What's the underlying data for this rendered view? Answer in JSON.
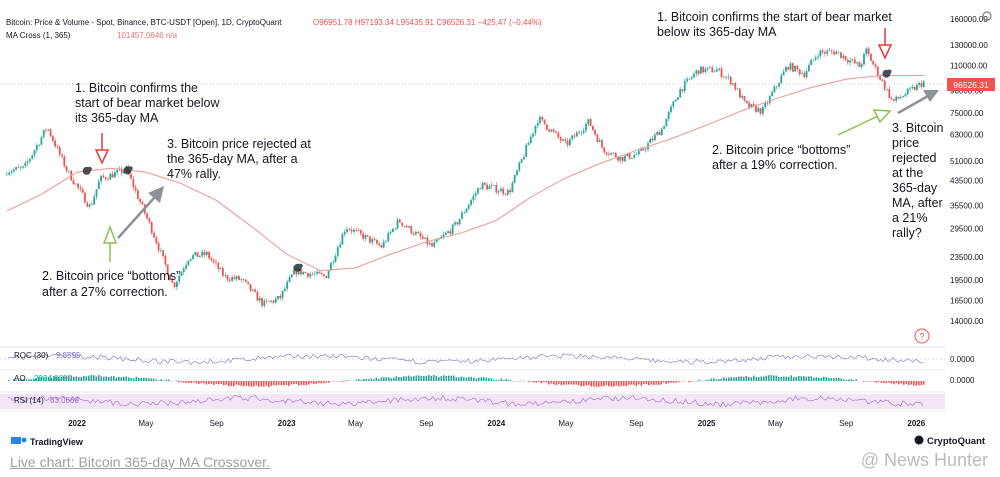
{
  "header": {
    "symbol_line": "Bitcoin: Price & Volume - Spot, Binance, BTC-USDT [Open], 1D, CryptoQuant",
    "ohlc": "O96951.78 H97193.34 L95435.91 C96526.31 −425.47 (−0.44%)",
    "ma_label": "MA Cross (1, 365)",
    "ma_value": "101457.0646 n/a"
  },
  "price_tag": "96526.31",
  "pane_labels": {
    "roc": "ROC (30)",
    "roc_value": "9.8595",
    "ao": "AO",
    "ao_value": "2964.8080",
    "rsi": "RSI (14)",
    "rsi_value": "63.0669"
  },
  "pane_axis": {
    "roc": "0.0000",
    "ao": "0.0000"
  },
  "annotations": {
    "left_1": [
      "1. Bitcoin confirms the",
      "start of bear market below",
      "its 365-day MA"
    ],
    "left_2": [
      "2. Bitcoin price “bottoms”",
      "after a 27% correction."
    ],
    "left_3": [
      "3. Bitcoin price rejected at",
      "the 365-day MA, after a",
      "47% rally."
    ],
    "right_1": [
      "1. Bitcoin confirms the start of bear market",
      "below its 365-day MA"
    ],
    "right_2": [
      "2. Bitcoin price “bottoms”",
      "after a 19% correction."
    ],
    "right_3": [
      "3. Bitcoin",
      "price",
      "rejected",
      "at the",
      "365-day",
      "MA, after",
      "a 21%",
      "rally?"
    ]
  },
  "branding": {
    "tradingview": "TradingView",
    "cryptoquant": "CryptoQuant",
    "info_mark": "?"
  },
  "caption": "Live chart: Bitcoin 365-day MA Crossover.",
  "watermark": "@ News Hunter",
  "colors": {
    "price_up": "#26a69a",
    "price_down": "#ef5350",
    "ma": "#e8a09a",
    "arrow_red": "#e53935",
    "arrow_green": "#8bc34a",
    "arrow_gray": "#8d9299",
    "roc": "#7e6fc9",
    "rsi": "#9c6ad1",
    "rsi_band": "#f3e5f5"
  },
  "chart_data": {
    "type": "line",
    "x_ticks": [
      "2022",
      "May",
      "Sep",
      "2023",
      "May",
      "Sep",
      "2024",
      "May",
      "Sep",
      "2025",
      "May",
      "Sep",
      "2026"
    ],
    "y_scale": "log",
    "y_ticks": [
      14000,
      16500,
      19500,
      23500,
      29500,
      35500,
      43500,
      51000,
      63000,
      75000,
      90000,
      110000,
      130000,
      160000
    ],
    "y_tick_labels": [
      "14000.00",
      "16500.00",
      "19500.00",
      "23500.00",
      "29500.00",
      "35500.00",
      "43500.00",
      "51000.00",
      "63000.00",
      "75000.00",
      "90000.00",
      "110000.00",
      "130000.00",
      "160000.00"
    ],
    "ylim": [
      12500,
      175000
    ],
    "series": [
      {
        "name": "",
        "role": "price",
        "x": [
          "2021-09-01",
          "2021-10-01",
          "2021-11-10",
          "2021-12-15",
          "2022-01-24",
          "2022-02-10",
          "2022-03-28",
          "2022-05-12",
          "2022-06-18",
          "2022-07-15",
          "2022-08-15",
          "2022-09-15",
          "2022-10-15",
          "2022-11-21",
          "2022-12-20",
          "2023-01-15",
          "2023-03-10",
          "2023-04-14",
          "2023-06-15",
          "2023-07-15",
          "2023-09-11",
          "2023-10-20",
          "2023-12-05",
          "2024-01-23",
          "2024-03-14",
          "2024-05-01",
          "2024-06-10",
          "2024-07-05",
          "2024-08-05",
          "2024-09-06",
          "2024-10-15",
          "2024-11-15",
          "2024-12-17",
          "2025-01-20",
          "2025-02-15",
          "2025-03-10",
          "2025-04-08",
          "2025-05-22",
          "2025-06-20",
          "2025-07-14",
          "2025-08-14",
          "2025-09-25",
          "2025-10-06",
          "2025-10-20",
          "2025-11-21",
          "2025-12-15",
          "2026-01-15"
        ],
        "y": [
          47000,
          48000,
          67000,
          47000,
          35000,
          44000,
          47500,
          29000,
          18500,
          23500,
          24000,
          20000,
          19500,
          16000,
          16800,
          21000,
          20000,
          30000,
          25500,
          31500,
          25500,
          30000,
          42000,
          39500,
          72000,
          58000,
          70000,
          56000,
          52000,
          54000,
          66000,
          90000,
          106000,
          106000,
          96000,
          80000,
          76000,
          110000,
          103000,
          122000,
          123000,
          109000,
          124000,
          109000,
          82000,
          88000,
          96500
        ]
      },
      {
        "name": "",
        "role": "ma_365",
        "x": [
          "2021-09-01",
          "2021-11-01",
          "2022-01-01",
          "2022-03-01",
          "2022-05-01",
          "2022-07-01",
          "2022-09-01",
          "2022-11-01",
          "2023-01-01",
          "2023-03-01",
          "2023-05-01",
          "2023-07-01",
          "2023-09-01",
          "2023-11-01",
          "2024-01-01",
          "2024-03-01",
          "2024-05-01",
          "2024-07-01",
          "2024-09-01",
          "2024-11-01",
          "2025-01-01",
          "2025-03-01",
          "2025-05-01",
          "2025-07-01",
          "2025-09-01",
          "2025-11-01",
          "2026-01-15"
        ],
        "y": [
          34000,
          39000,
          46500,
          48000,
          46500,
          42500,
          37000,
          30000,
          24000,
          21000,
          21500,
          24000,
          26500,
          28500,
          31500,
          38000,
          44500,
          50000,
          55500,
          61000,
          68000,
          76000,
          84000,
          92000,
          98500,
          101500,
          101457
        ]
      }
    ],
    "events": [
      {
        "label": "bear confirmation",
        "x": "2022-01-18",
        "y": 47000
      },
      {
        "label": "MA rejection",
        "x": "2022-03-30",
        "y": 47200
      },
      {
        "label": "MA reclaim",
        "x": "2023-01-20",
        "y": 21500
      },
      {
        "label": "bear confirmation",
        "x": "2025-11-10",
        "y": 103000
      }
    ],
    "panes": [
      {
        "name": "ROC (30)",
        "last": 9.8595
      },
      {
        "name": "AO",
        "last": 2964.808
      },
      {
        "name": "RSI (14)",
        "last": 63.0669
      }
    ],
    "grid": false
  }
}
